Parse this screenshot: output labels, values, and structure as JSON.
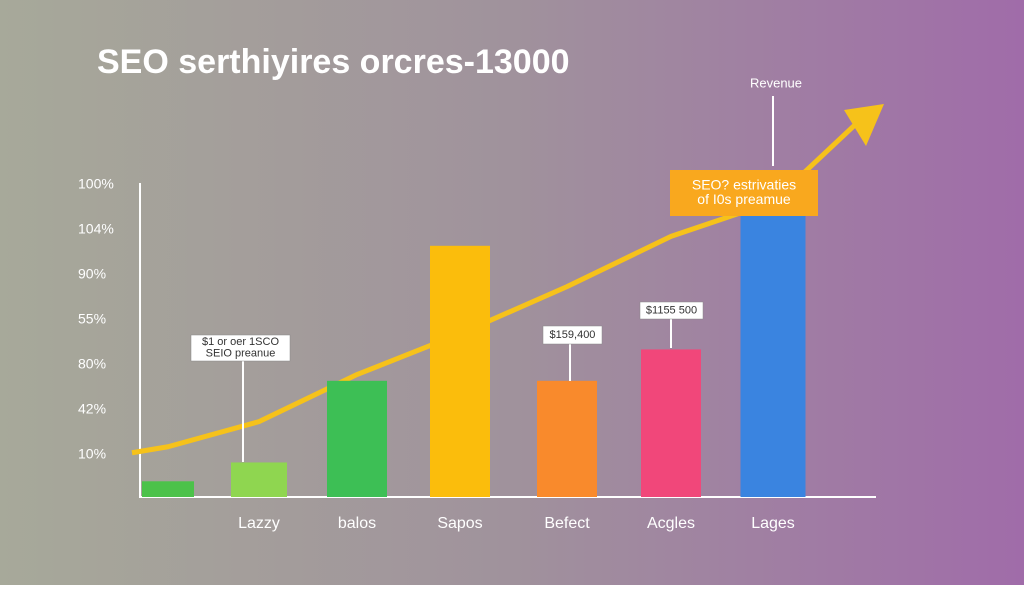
{
  "chart_data": {
    "type": "bar",
    "title": "SEO  serthiyires orcres-13000",
    "y_axis_labels": [
      "100%",
      "104%",
      "90%",
      "55%",
      "80%",
      "42%",
      "10%"
    ],
    "categories": [
      null,
      "Lazzy",
      "balos",
      "Sapos",
      "Befect",
      "Acgles",
      "Lages"
    ],
    "values": [
      5,
      11,
      37,
      80,
      37,
      47,
      93
    ],
    "colors": [
      "#4cc24a",
      "#8fd650",
      "#3dbf55",
      "#fbbd0c",
      "#f98a2c",
      "#f1477a",
      "#3a84e0"
    ],
    "ylim": [
      0,
      100
    ],
    "line": {
      "color": "#f6c21a",
      "values": [
        16,
        24,
        39,
        52,
        67,
        83,
        94
      ]
    },
    "annotations": [
      {
        "lines": [
          "$1 or oer 1SCO",
          "SEIO preanue"
        ]
      },
      {
        "lines": [
          "$159,400"
        ]
      },
      {
        "lines": [
          "$1155 500"
        ]
      },
      {
        "lines": [
          "SEO? estrivaties",
          "of I0s preamue"
        ]
      },
      {
        "lines": [
          "Revenue"
        ]
      }
    ]
  }
}
